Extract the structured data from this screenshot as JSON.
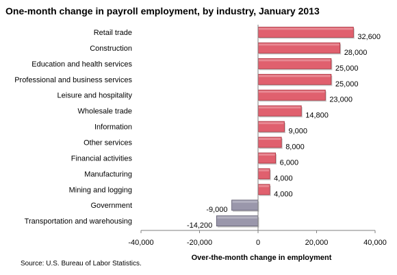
{
  "chart_data": {
    "type": "bar",
    "orientation": "horizontal",
    "title": "One-month change in payroll employment, by industry, January 2013",
    "xlabel": "Over-the-month change in employment",
    "ylabel": "",
    "xlim": [
      -40000,
      40000
    ],
    "xticks": [
      -40000,
      -20000,
      0,
      20000,
      40000
    ],
    "xtick_labels": [
      "-40,000",
      "-20,000",
      "0",
      "20,000",
      "40,000"
    ],
    "grid": false,
    "categories": [
      "Retail trade",
      "Construction",
      "Education and health services",
      "Professional and  business services",
      "Leisure and hospitality",
      "Wholesale trade",
      "Information",
      "Other services",
      "Financial activities",
      "Manufacturing",
      "Mining and logging",
      "Government",
      "Transportation and warehousing"
    ],
    "values": [
      32600,
      28000,
      25000,
      25000,
      23000,
      14800,
      9000,
      8000,
      6000,
      4000,
      4000,
      -9000,
      -14200
    ],
    "value_labels": [
      "32,600",
      "28,000",
      "25,000",
      "25,000",
      "23,000",
      "14,800",
      "9,000",
      "8,000",
      "6,000",
      "4,000",
      "4,000",
      "-9,000",
      "-14,200"
    ],
    "colors": {
      "positive": "#e0606e",
      "positive_dark": "#a8323e",
      "negative": "#9a97ab",
      "negative_dark": "#5f5c70",
      "axis": "#7f7f7f"
    }
  },
  "source": "Source:  U.S. Bureau of Labor Statistics."
}
